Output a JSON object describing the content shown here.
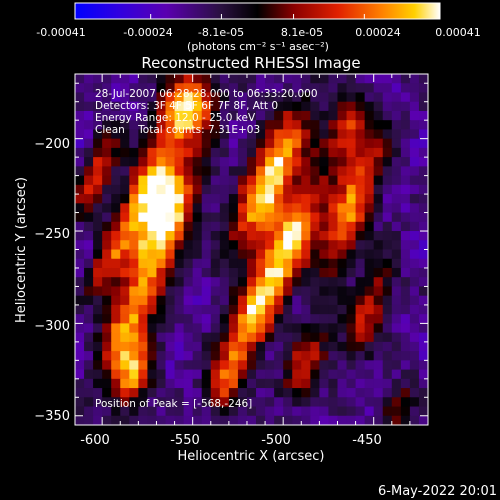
{
  "chart_data": {
    "type": "heatmap",
    "title": "Reconstructed RHESSI Image",
    "xlabel": "Heliocentric X (arcsec)",
    "ylabel": "Heliocentric Y (arcsec)",
    "xlim": [
      -615,
      -420
    ],
    "ylim": [
      -355,
      -165
    ],
    "x_ticks": [
      -600,
      -550,
      -500,
      -450
    ],
    "y_ticks": [
      -350,
      -300,
      -250,
      -200
    ],
    "x_tick_labels": [
      "-600",
      "-550",
      "-500",
      "-450"
    ],
    "y_tick_labels": [
      "−350",
      "−300",
      "−250",
      "−200"
    ],
    "colorbar": {
      "range": [
        -0.00041,
        0.00041
      ],
      "ticks": [
        -0.00041,
        -0.00024,
        -8.1e-05,
        8.1e-05,
        0.00024,
        0.00041
      ],
      "tick_labels": [
        "-0.00041",
        "-0.00024",
        "-8.1e-05",
        "8.1e-05",
        "0.00024",
        "0.00041"
      ],
      "unit_label": "(photons cm⁻² s⁻¹ asec⁻²)",
      "colors": [
        "#0000ff",
        "#5a00b0",
        "#3a1660",
        "#000000",
        "#8b0000",
        "#e02000",
        "#ff8000",
        "#ffd000",
        "#ffffff"
      ]
    },
    "annotations": [
      "28-Jul-2007 06:28:28.000 to 06:33:20.000",
      "Detectors: 3F 4F 5F 6F 7F 8F, Att 0",
      "Energy Range: 12.0 - 25.0 keV",
      "Clean    Total counts: 7.31E+03"
    ],
    "peak_label": "Position of Peak = [-568,-246]",
    "peak": [
      -568,
      -246
    ]
  },
  "timestamp": "6-May-2022 20:01"
}
